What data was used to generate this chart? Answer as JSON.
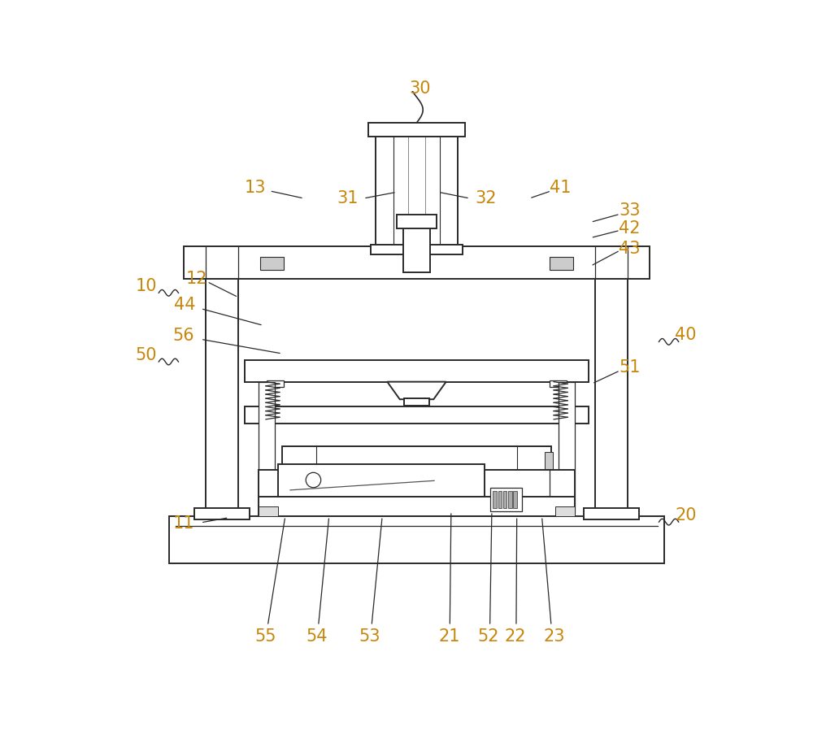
{
  "bg_color": "#ffffff",
  "line_color": "#2a2a2a",
  "label_color": "#c8860a",
  "fig_width": 10.0,
  "fig_height": 9.3,
  "dpi": 100
}
